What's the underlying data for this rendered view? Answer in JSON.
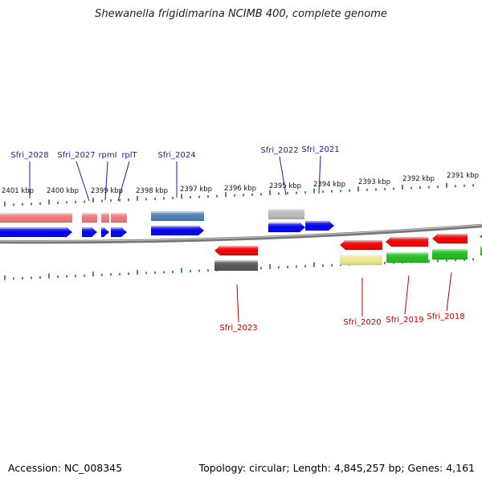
{
  "title": "Shewanella frigidimarina NCIMB 400, complete genome",
  "footer": {
    "accession_label": "Accession:",
    "accession": "NC_008345",
    "topology_text": "Topology: circular; Length: 4,845,257 bp; Genes: 4,161"
  },
  "scale_labels": [
    "2401 kbp",
    "2400 kbp",
    "2399 kbp",
    "2398 kbp",
    "2397 kbp",
    "2396 kbp",
    "2395 kbp",
    "2394 kbp",
    "2393 kbp",
    "2392 kbp",
    "2391 kbp"
  ],
  "colors": {
    "forward_label": "#1a1aa6",
    "reverse_label": "#b30000",
    "tick": "#1a7a1a",
    "backbone": "#777777",
    "cds_forward": "#0000ee",
    "cds_reverse": "#ee0000",
    "gene_forward_rna": "#ee7777",
    "gene_forward_blue": "#4a7fb0",
    "gene_grey": "#b8b8b8",
    "gene_dark": "#555555",
    "gene_yellow": "#f0e68c",
    "gene_green": "#22bb22"
  },
  "genes_forward": [
    {
      "name": "Sfri_2028"
    },
    {
      "name": "Sfri_2027"
    },
    {
      "name": "rpmI"
    },
    {
      "name": "rplT"
    },
    {
      "name": "Sfri_2024"
    },
    {
      "name": "Sfri_2022"
    },
    {
      "name": "Sfri_2021"
    }
  ],
  "genes_reverse": [
    {
      "name": "Sfri_2023"
    },
    {
      "name": "Sfri_2020"
    },
    {
      "name": "Sfri_2019"
    },
    {
      "name": "Sfri_2018"
    }
  ]
}
